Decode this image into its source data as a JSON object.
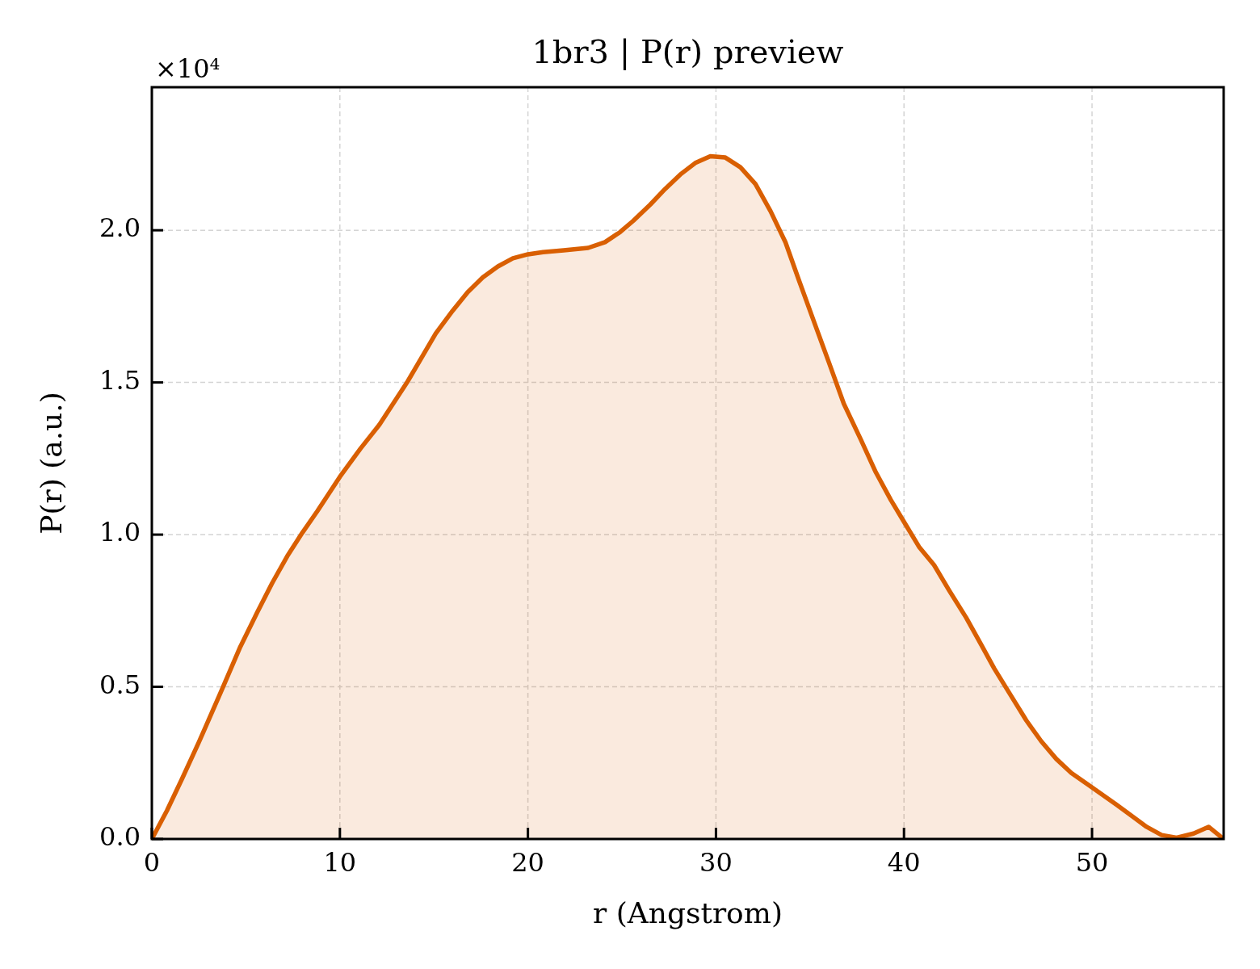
{
  "chart_data": {
    "type": "area",
    "title": "1br3 | P(r) preview",
    "xlabel": "r (Angstrom)",
    "ylabel": "P(r) (a.u.)",
    "annotations": [
      "×10⁴"
    ],
    "x": [
      0,
      0.8,
      1.6,
      2.5,
      3.7,
      4.7,
      5.6,
      6.4,
      7.2,
      8.0,
      8.8,
      10.0,
      11.1,
      12.1,
      13.6,
      15.1,
      16.0,
      16.8,
      17.6,
      18.4,
      19.2,
      20.0,
      20.8,
      21.9,
      23.2,
      24.1,
      24.9,
      25.6,
      26.5,
      27.3,
      28.1,
      28.9,
      29.7,
      30.5,
      31.3,
      32.1,
      32.9,
      33.7,
      34.4,
      35.3,
      36.0,
      36.8,
      37.7,
      38.5,
      39.3,
      40.0,
      40.8,
      41.6,
      42.4,
      43.3,
      44.1,
      44.8,
      45.6,
      46.5,
      47.3,
      48.1,
      48.9,
      49.9,
      51.3,
      52.9,
      53.7,
      54.5,
      55.4,
      56.2,
      57.0
    ],
    "series": [
      {
        "color": "#d95f02",
        "values": [
          0,
          0.093,
          0.197,
          0.318,
          0.487,
          0.631,
          0.744,
          0.841,
          0.929,
          1.006,
          1.077,
          1.19,
          1.283,
          1.361,
          1.503,
          1.661,
          1.736,
          1.797,
          1.845,
          1.881,
          1.908,
          1.921,
          1.928,
          1.934,
          1.942,
          1.961,
          1.994,
          2.031,
          2.084,
          2.136,
          2.183,
          2.221,
          2.243,
          2.239,
          2.207,
          2.152,
          2.063,
          1.96,
          1.838,
          1.685,
          1.567,
          1.43,
          1.313,
          1.205,
          1.114,
          1.042,
          0.96,
          0.9,
          0.817,
          0.728,
          0.639,
          0.56,
          0.48,
          0.39,
          0.321,
          0.263,
          0.217,
          0.174,
          0.113,
          0.04,
          0.013,
          0.004,
          0.018,
          0.04,
          0
        ]
      }
    ],
    "xlim": [
      0,
      57
    ],
    "ylim": [
      0,
      2.47
    ],
    "xticks": [
      0,
      10,
      20,
      30,
      40,
      50
    ],
    "yticks": [
      {
        "value": 0,
        "label": "0.0"
      },
      0.5,
      {
        "value": 1,
        "label": "1.0"
      },
      1.5,
      {
        "value": 2,
        "label": "2.0"
      }
    ],
    "grid": true,
    "marker": "none",
    "line_style": "solid"
  }
}
